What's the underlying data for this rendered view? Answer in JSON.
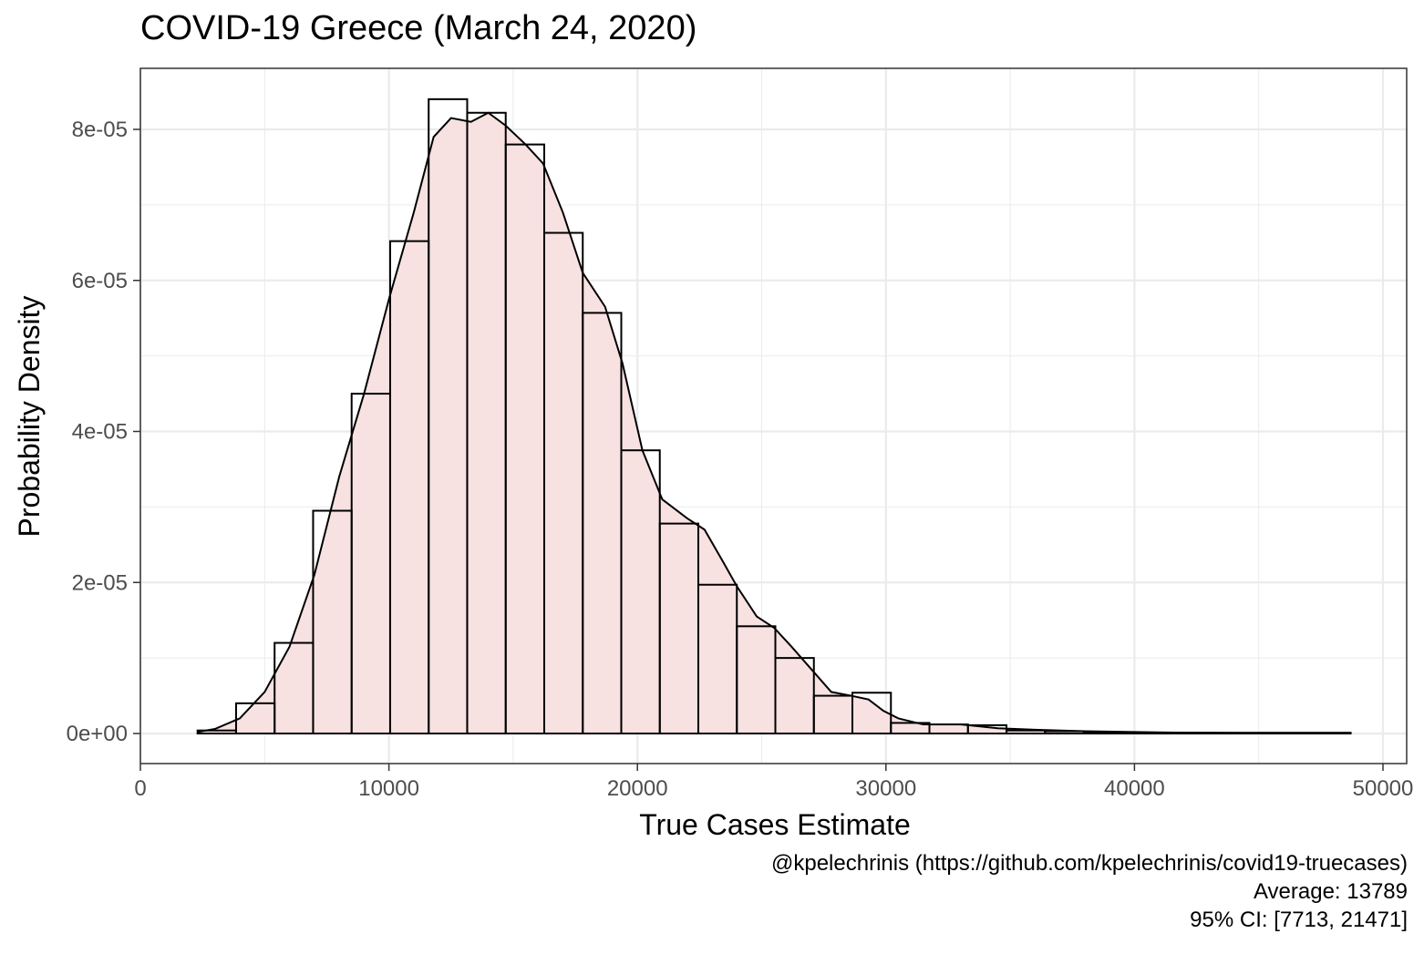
{
  "chart_data": {
    "type": "histogram",
    "title": "COVID-19 Greece (March 24, 2020)",
    "xlabel": "True Cases Estimate",
    "ylabel": "Probability Density",
    "xlim": [
      0,
      50000
    ],
    "ylim": [
      -4e-06,
      8.8e-05
    ],
    "x_ticks": [
      {
        "value": 0,
        "label": "0"
      },
      {
        "value": 10000,
        "label": "10000"
      },
      {
        "value": 20000,
        "label": "20000"
      },
      {
        "value": 30000,
        "label": "30000"
      },
      {
        "value": 40000,
        "label": "40000"
      },
      {
        "value": 50000,
        "label": "50000"
      }
    ],
    "y_ticks": [
      {
        "value": 0,
        "label": "0e+00"
      },
      {
        "value": 2e-05,
        "label": "2e-05"
      },
      {
        "value": 4e-05,
        "label": "4e-05"
      },
      {
        "value": 6e-05,
        "label": "6e-05"
      },
      {
        "value": 8e-05,
        "label": "8e-05"
      }
    ],
    "grid": true,
    "bins": [
      {
        "x0": 2300,
        "x1": 3850,
        "density": 4e-07
      },
      {
        "x0": 3850,
        "x1": 5400,
        "density": 4e-06
      },
      {
        "x0": 5400,
        "x1": 6950,
        "density": 1.2e-05
      },
      {
        "x0": 6950,
        "x1": 8500,
        "density": 2.95e-05
      },
      {
        "x0": 8500,
        "x1": 10050,
        "density": 4.5e-05
      },
      {
        "x0": 10050,
        "x1": 11600,
        "density": 6.52e-05
      },
      {
        "x0": 11600,
        "x1": 13150,
        "density": 8.4e-05
      },
      {
        "x0": 13150,
        "x1": 14700,
        "density": 8.22e-05
      },
      {
        "x0": 14700,
        "x1": 16250,
        "density": 7.8e-05
      },
      {
        "x0": 16250,
        "x1": 17800,
        "density": 6.63e-05
      },
      {
        "x0": 17800,
        "x1": 19350,
        "density": 5.57e-05
      },
      {
        "x0": 19350,
        "x1": 20900,
        "density": 3.75e-05
      },
      {
        "x0": 20900,
        "x1": 22450,
        "density": 2.78e-05
      },
      {
        "x0": 22450,
        "x1": 24000,
        "density": 1.97e-05
      },
      {
        "x0": 24000,
        "x1": 25550,
        "density": 1.42e-05
      },
      {
        "x0": 25550,
        "x1": 27100,
        "density": 1e-05
      },
      {
        "x0": 27100,
        "x1": 28650,
        "density": 5e-06
      },
      {
        "x0": 28650,
        "x1": 30200,
        "density": 5.4e-06
      },
      {
        "x0": 30200,
        "x1": 31750,
        "density": 1.4e-06
      },
      {
        "x0": 31750,
        "x1": 33300,
        "density": 1.2e-06
      },
      {
        "x0": 33300,
        "x1": 34850,
        "density": 1.1e-06
      },
      {
        "x0": 34850,
        "x1": 36400,
        "density": 4e-07
      },
      {
        "x0": 36400,
        "x1": 37950,
        "density": 3e-07
      },
      {
        "x0": 37950,
        "x1": 39500,
        "density": 1e-07
      },
      {
        "x0": 39500,
        "x1": 48700,
        "density": 1e-07
      }
    ],
    "density_curve": {
      "x": [
        2300,
        3000,
        4000,
        5000,
        6000,
        7000,
        8000,
        9000,
        10000,
        11000,
        11800,
        12500,
        13300,
        14000,
        14700,
        15500,
        16200,
        17000,
        17800,
        18700,
        19400,
        20200,
        21000,
        22000,
        22700,
        23400,
        24000,
        24800,
        25500,
        26200,
        27000,
        27800,
        28600,
        29300,
        29900,
        30500,
        31500,
        33000,
        34500,
        36000,
        38000,
        40000,
        42000,
        45000,
        48700
      ],
      "y": [
        2e-07,
        6e-07,
        2e-06,
        5.5e-06,
        1.15e-05,
        2.1e-05,
        3.4e-05,
        4.5e-05,
        5.75e-05,
        6.9e-05,
        7.9e-05,
        8.15e-05,
        8.1e-05,
        8.22e-05,
        8.05e-05,
        7.8e-05,
        7.55e-05,
        6.9e-05,
        6.1e-05,
        5.65e-05,
        4.9e-05,
        3.75e-05,
        3.1e-05,
        2.85e-05,
        2.7e-05,
        2.3e-05,
        1.95e-05,
        1.55e-05,
        1.4e-05,
        1.15e-05,
        8.5e-06,
        5.5e-06,
        5e-06,
        4.5e-06,
        3e-06,
        2e-06,
        1.2e-06,
        1.2e-06,
        7e-07,
        5e-07,
        3e-07,
        2e-07,
        1e-07,
        5e-08,
        3e-08
      ]
    },
    "fill_color": "#f7e1e1",
    "line_color": "#000000"
  },
  "caption": {
    "line1": "@kpelechrinis (https://github.com/kpelechrinis/covid19-truecases)",
    "line2": "Average: 13789",
    "line3": "95% CI: [7713, 21471]"
  }
}
